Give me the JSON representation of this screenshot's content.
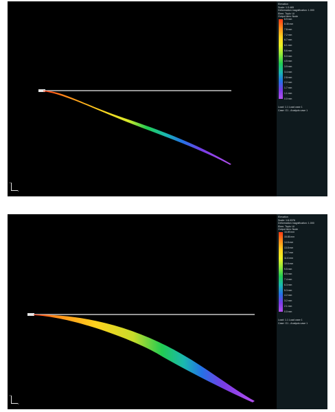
{
  "views": [
    {
      "header": [
        "Elevation",
        "Scale: 1:3.465",
        "Deformation magnification: 1.000",
        "Elem. Topic: Ui",
        "Output item: Node"
      ],
      "legend_ticks": [
        "8.9 mm",
        "8.35 mm",
        "7.8 mm",
        "7.2 mm",
        "6.7 mm",
        "6.1 mm",
        "5.6 mm",
        "5.0 mm",
        "4.5 mm",
        "3.9 mm",
        "3.4 mm",
        "2.8 mm",
        "2.2 mm",
        "1.7 mm",
        "1.1 mm"
      ],
      "legend_min": "0.0 mm",
      "footer": [
        "Load: 1.1 Load case 1",
        "Case: G1 - Analysis case 1"
      ],
      "colors": [
        "#ff3a14",
        "#ff8c1a",
        "#ffd21e",
        "#eaf224",
        "#8ee83a",
        "#22cc52",
        "#1ab8b0",
        "#2472e6",
        "#7a3ce6",
        "#b450ee"
      ]
    },
    {
      "header": [
        "Elevation",
        "Scale: 1:6.0376",
        "Deformation magnification: 1.000",
        "Elem. Topic: Ui",
        "Output item: Node"
      ],
      "legend_ticks": [
        "16.89 mm",
        "15.85 mm",
        "14.8 mm",
        "13.8 mm",
        "12.7 mm",
        "11.6 mm",
        "10.6 mm",
        "9.5 mm",
        "8.5 mm",
        "7.4 mm",
        "6.3 mm",
        "5.3 mm",
        "4.2 mm",
        "3.2 mm",
        "2.1 mm"
      ],
      "legend_min": "0.0 mm",
      "footer": [
        "Load: 1.1 Load case 1",
        "Case: G1 - Analysis case 1"
      ],
      "colors": [
        "#ff3a14",
        "#ff8c1a",
        "#ffd21e",
        "#eaf224",
        "#8ee83a",
        "#22cc52",
        "#1ab8b0",
        "#2472e6",
        "#7a3ce6",
        "#b450ee"
      ]
    }
  ],
  "triad_labels": {
    "x": "x",
    "z": "z"
  }
}
